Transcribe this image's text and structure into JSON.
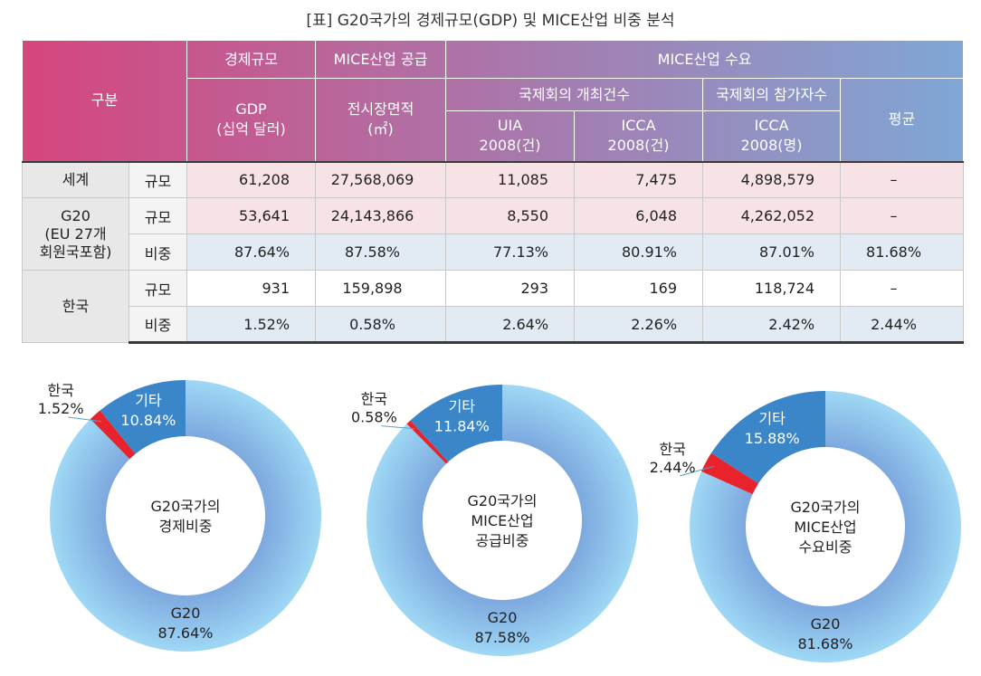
{
  "title": "[표] G20국가의 경제규모(GDP) 및 MICE산업 비중 분석",
  "table": {
    "header": {
      "gubun": "구분",
      "econ_scale": "경제규모",
      "mice_supply": "MICE산업 공급",
      "mice_demand": "MICE산업 수요",
      "gdp": "GDP",
      "gdp_unit": "(십억 달러)",
      "exhibit_area": "전시장면적",
      "exhibit_unit": "(㎡)",
      "intl_meetings": "국제회의 개최건수",
      "intl_participants": "국제회의 참가자수",
      "average": "평균",
      "uia": "UIA",
      "uia_unit": "2008(건)",
      "icca1": "ICCA",
      "icca1_unit": "2008(건)",
      "icca2": "ICCA",
      "icca2_unit": "2008(명)"
    },
    "groups": {
      "world": "세계",
      "g20_l1": "G20",
      "g20_l2": "(EU 27개",
      "g20_l3": "회원국포함)",
      "korea": "한국"
    },
    "sub_scale": "규모",
    "sub_share": "비중",
    "rows": {
      "world_scale": [
        "61,208",
        "27,568,069",
        "11,085",
        "7,475",
        "4,898,579",
        "–"
      ],
      "g20_scale": [
        "53,641",
        "24,143,866",
        "8,550",
        "6,048",
        "4,262,052",
        "–"
      ],
      "g20_share": [
        "87.64%",
        "87.58%",
        "77.13%",
        "80.91%",
        "87.01%",
        "81.68%"
      ],
      "korea_scale": [
        "931",
        "159,898",
        "293",
        "169",
        "118,724",
        "–"
      ],
      "korea_share": [
        "1.52%",
        "0.58%",
        "2.64%",
        "2.26%",
        "2.42%",
        "2.44%"
      ]
    }
  },
  "colors": {
    "header_left": "#d6457e",
    "header_right": "#7fa7d6",
    "g20": "#8fd0f2",
    "etc": "#3a86c8",
    "korea": "#e8232b"
  },
  "chart_data": [
    {
      "type": "pie",
      "center_label": [
        "G20국가의",
        "경제비중"
      ],
      "slices": [
        {
          "name": "G20",
          "label": "87.64%",
          "value": 87.64
        },
        {
          "name": "기타",
          "label": "10.84%",
          "value": 10.84
        },
        {
          "name": "한국",
          "label": "1.52%",
          "value": 1.52
        }
      ]
    },
    {
      "type": "pie",
      "center_label": [
        "G20국가의",
        "MICE산업",
        "공급비중"
      ],
      "slices": [
        {
          "name": "G20",
          "label": "87.58%",
          "value": 87.58
        },
        {
          "name": "기타",
          "label": "11.84%",
          "value": 11.84
        },
        {
          "name": "한국",
          "label": "0.58%",
          "value": 0.58
        }
      ]
    },
    {
      "type": "pie",
      "center_label": [
        "G20국가의",
        "MICE산업",
        "수요비중"
      ],
      "slices": [
        {
          "name": "G20",
          "label": "81.68%",
          "value": 81.68
        },
        {
          "name": "기타",
          "label": "15.88%",
          "value": 15.88
        },
        {
          "name": "한국",
          "label": "2.44%",
          "value": 2.44
        }
      ]
    }
  ]
}
